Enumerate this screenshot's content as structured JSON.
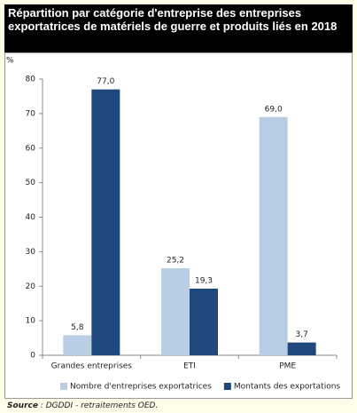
{
  "chart_data": {
    "type": "bar",
    "title": "Répartition par catégorie d'entreprise des entreprises exportatrices de matériels de guerre et produits liés en 2018",
    "y_label": "%",
    "categories": [
      "Grandes entreprises",
      "ETI",
      "PME"
    ],
    "series": [
      {
        "name": "Nombre d'entreprises exportatrices",
        "color": "#b9cde5",
        "values": [
          5.8,
          25.2,
          69.0
        ],
        "value_labels": [
          "5,8",
          "25,2",
          "69,0"
        ]
      },
      {
        "name": "Montants des exportations",
        "color": "#1f497d",
        "values": [
          77.0,
          19.3,
          3.7
        ],
        "value_labels": [
          "77,0",
          "19,3",
          "3,7"
        ]
      }
    ],
    "ylim": [
      0,
      80
    ],
    "yticks": [
      0,
      10,
      20,
      30,
      40,
      50,
      60,
      70,
      80
    ],
    "grid": false,
    "legend": "bottom"
  },
  "source": {
    "label": "Source",
    "text": ": DGDDI - retraitements OED."
  }
}
